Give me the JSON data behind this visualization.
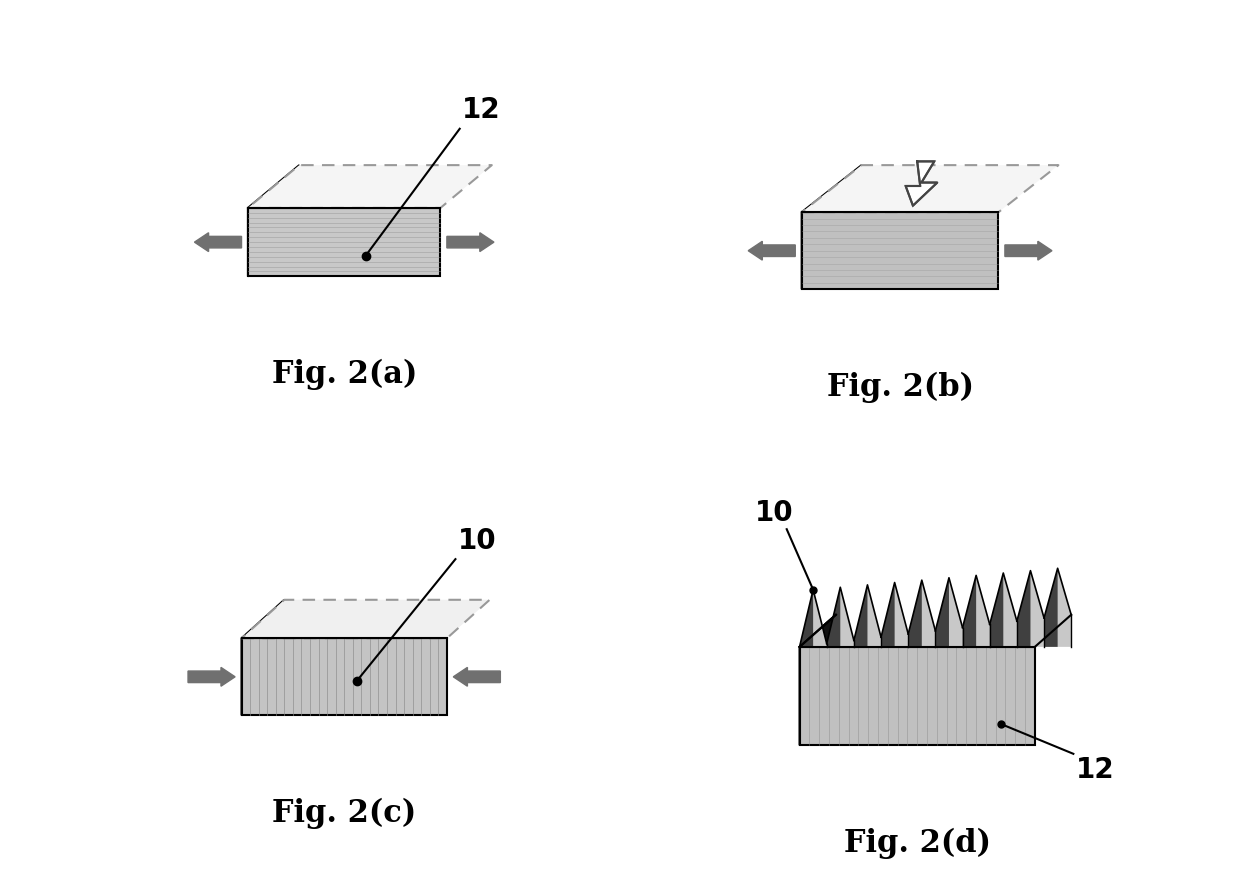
{
  "fig_labels": [
    "Fig. 2(a)",
    "Fig. 2(b)",
    "Fig. 2(c)",
    "Fig. 2(d)"
  ],
  "label_fontsize": 22,
  "annotation_fontsize": 20,
  "background_color": "#ffffff",
  "box_top_color": "#f5f5f5",
  "box_front_color_a": "#c8c8c8",
  "box_front_color_b": "#c0c0c0",
  "box_side_color": "#111111",
  "arrow_color": "#707070",
  "dashed_color": "#aaaaaa"
}
